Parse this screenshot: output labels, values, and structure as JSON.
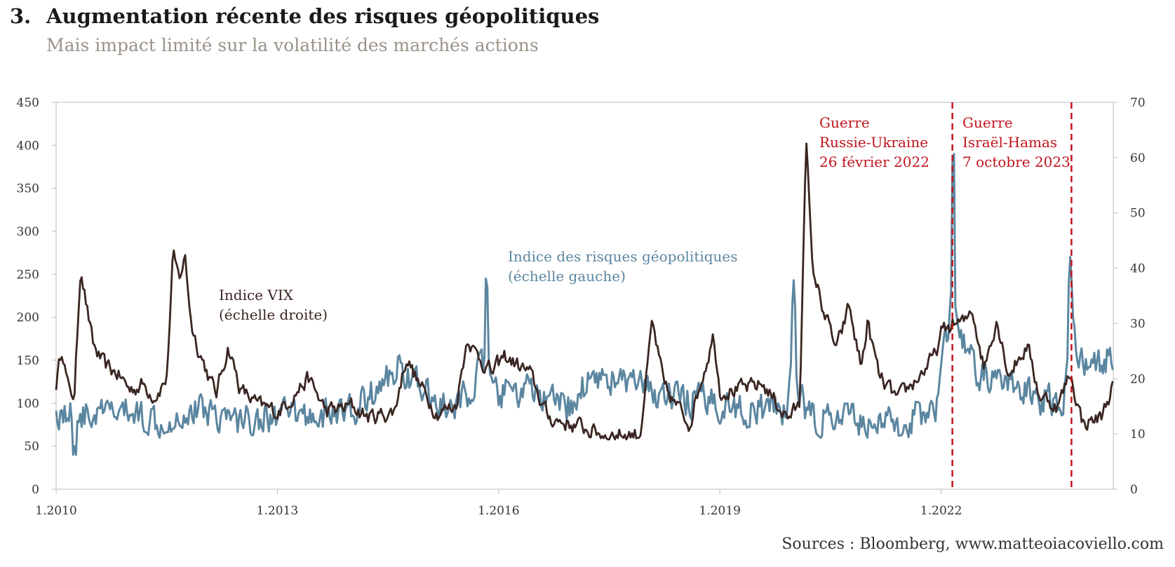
{
  "header": {
    "number": "3.",
    "title": "Augmentation récente des risques géopolitiques",
    "subtitle": "Mais impact limité sur la volatilité des marchés actions"
  },
  "source": "Sources : Bloomberg, www.matteoiacoviello.com",
  "colors": {
    "gpr": "#5b86a0",
    "vix": "#3a2622",
    "event": "#c0141c",
    "axis": "#bbbbbb"
  },
  "chart_data": {
    "type": "line",
    "x_domain": [
      "1.2010",
      "5.2024"
    ],
    "x_ticks": [
      "1.2010",
      "1.2013",
      "1.2016",
      "1.2019",
      "1.2022"
    ],
    "y_left": {
      "range": [
        0,
        450
      ],
      "ticks": [
        0,
        50,
        100,
        150,
        200,
        250,
        300,
        350,
        400,
        450
      ]
    },
    "y_right": {
      "range": [
        0,
        70
      ],
      "ticks": [
        0,
        10,
        20,
        30,
        40,
        50,
        60,
        70
      ]
    },
    "annotations": [
      {
        "id": "vix-label",
        "lines": [
          "Indice VIX",
          "(échelle droite)"
        ]
      },
      {
        "id": "gpr-label",
        "lines": [
          "Indice des risques géopolitiques",
          "(échelle gauche)"
        ]
      },
      {
        "id": "event-russia",
        "lines": [
          "Guerre",
          "Russie-Ukraine",
          "26 février 2022"
        ]
      },
      {
        "id": "event-israel",
        "lines": [
          "Guerre",
          "Israël-Hamas",
          "7 octobre 2023"
        ]
      }
    ],
    "events": [
      {
        "date": "2022-02-26",
        "annotation": "event-russia"
      },
      {
        "date": "2023-10-07",
        "annotation": "event-israel"
      }
    ],
    "series": [
      {
        "axis": "right",
        "anchors": [
          [
            "2010-01",
            19
          ],
          [
            "2010-02",
            26
          ],
          [
            "2010-03",
            18
          ],
          [
            "2010-04",
            17
          ],
          [
            "2010-05",
            41
          ],
          [
            "2010-06",
            33
          ],
          [
            "2010-07",
            26
          ],
          [
            "2010-09",
            22
          ],
          [
            "2010-11",
            21
          ],
          [
            "2011-01",
            18
          ],
          [
            "2011-03",
            19
          ],
          [
            "2011-05",
            17
          ],
          [
            "2011-07",
            20
          ],
          [
            "2011-08",
            42
          ],
          [
            "2011-09",
            38
          ],
          [
            "2011-10",
            42
          ],
          [
            "2011-11",
            30
          ],
          [
            "2011-12",
            26
          ],
          [
            "2012-03",
            17
          ],
          [
            "2012-05",
            26
          ],
          [
            "2012-07",
            18
          ],
          [
            "2012-10",
            15
          ],
          [
            "2013-01",
            14
          ],
          [
            "2013-06",
            20
          ],
          [
            "2013-09",
            14
          ],
          [
            "2014-01",
            15
          ],
          [
            "2014-04",
            13
          ],
          [
            "2014-08",
            14
          ],
          [
            "2014-10",
            24
          ],
          [
            "2014-12",
            19
          ],
          [
            "2015-03",
            14
          ],
          [
            "2015-06",
            15
          ],
          [
            "2015-08",
            28
          ],
          [
            "2015-09",
            25
          ],
          [
            "2015-12",
            21
          ],
          [
            "2016-02",
            24
          ],
          [
            "2016-06",
            21
          ],
          [
            "2016-09",
            13
          ],
          [
            "2016-12",
            12
          ],
          [
            "2017-06",
            10
          ],
          [
            "2017-12",
            10
          ],
          [
            "2018-02",
            30
          ],
          [
            "2018-04",
            18
          ],
          [
            "2018-08",
            12
          ],
          [
            "2018-12",
            28
          ],
          [
            "2019-01",
            18
          ],
          [
            "2019-05",
            18
          ],
          [
            "2019-08",
            19
          ],
          [
            "2019-12",
            13
          ],
          [
            "2020-02",
            15
          ],
          [
            "2020-03",
            65
          ],
          [
            "2020-04",
            40
          ],
          [
            "2020-06",
            32
          ],
          [
            "2020-08",
            25
          ],
          [
            "2020-10",
            33
          ],
          [
            "2020-12",
            22
          ],
          [
            "2021-01",
            30
          ],
          [
            "2021-03",
            20
          ],
          [
            "2021-06",
            16
          ],
          [
            "2021-09",
            20
          ],
          [
            "2021-12",
            24
          ],
          [
            "2022-01",
            28
          ],
          [
            "2022-03",
            30
          ],
          [
            "2022-05",
            30
          ],
          [
            "2022-06",
            33
          ],
          [
            "2022-08",
            22
          ],
          [
            "2022-10",
            31
          ],
          [
            "2022-12",
            21
          ],
          [
            "2023-03",
            26
          ],
          [
            "2023-05",
            17
          ],
          [
            "2023-08",
            15
          ],
          [
            "2023-10",
            21
          ],
          [
            "2023-12",
            12
          ],
          [
            "2024-03",
            13
          ],
          [
            "2024-04",
            16
          ],
          [
            "2024-05",
            19
          ]
        ]
      },
      {
        "axis": "left",
        "anchors": [
          [
            "2010-01",
            90
          ],
          [
            "2010-06",
            85
          ],
          [
            "2011-01",
            90
          ],
          [
            "2011-06",
            80
          ],
          [
            "2012-01",
            95
          ],
          [
            "2012-06",
            80
          ],
          [
            "2013-01",
            85
          ],
          [
            "2013-06",
            85
          ],
          [
            "2014-01",
            90
          ],
          [
            "2014-06",
            120
          ],
          [
            "2014-09",
            145
          ],
          [
            "2015-01",
            110
          ],
          [
            "2015-06",
            90
          ],
          [
            "2015-11",
            150
          ],
          [
            "2015-12",
            110
          ],
          [
            "2016-06",
            115
          ],
          [
            "2016-09",
            100
          ],
          [
            "2017-01",
            95
          ],
          [
            "2017-04",
            135
          ],
          [
            "2017-09",
            125
          ],
          [
            "2018-01",
            115
          ],
          [
            "2018-06",
            105
          ],
          [
            "2019-01",
            100
          ],
          [
            "2019-06",
            90
          ],
          [
            "2019-12",
            95
          ],
          [
            "2020-01",
            150
          ],
          [
            "2020-03",
            85
          ],
          [
            "2020-08",
            80
          ],
          [
            "2021-01",
            80
          ],
          [
            "2021-06",
            75
          ],
          [
            "2021-12",
            95
          ],
          [
            "2022-01",
            130
          ],
          [
            "2022-03",
            235
          ],
          [
            "2022-04",
            175
          ],
          [
            "2022-07",
            135
          ],
          [
            "2022-12",
            120
          ],
          [
            "2023-05",
            105
          ],
          [
            "2023-09",
            100
          ],
          [
            "2023-10",
            215
          ],
          [
            "2023-11",
            160
          ],
          [
            "2024-02",
            140
          ],
          [
            "2024-05",
            160
          ]
        ],
        "spikes": [
          [
            "2010-04",
            50
          ],
          [
            "2015-11",
            255
          ],
          [
            "2020-01",
            243
          ],
          [
            "2022-03",
            400
          ],
          [
            "2023-10",
            270
          ]
        ]
      }
    ]
  }
}
